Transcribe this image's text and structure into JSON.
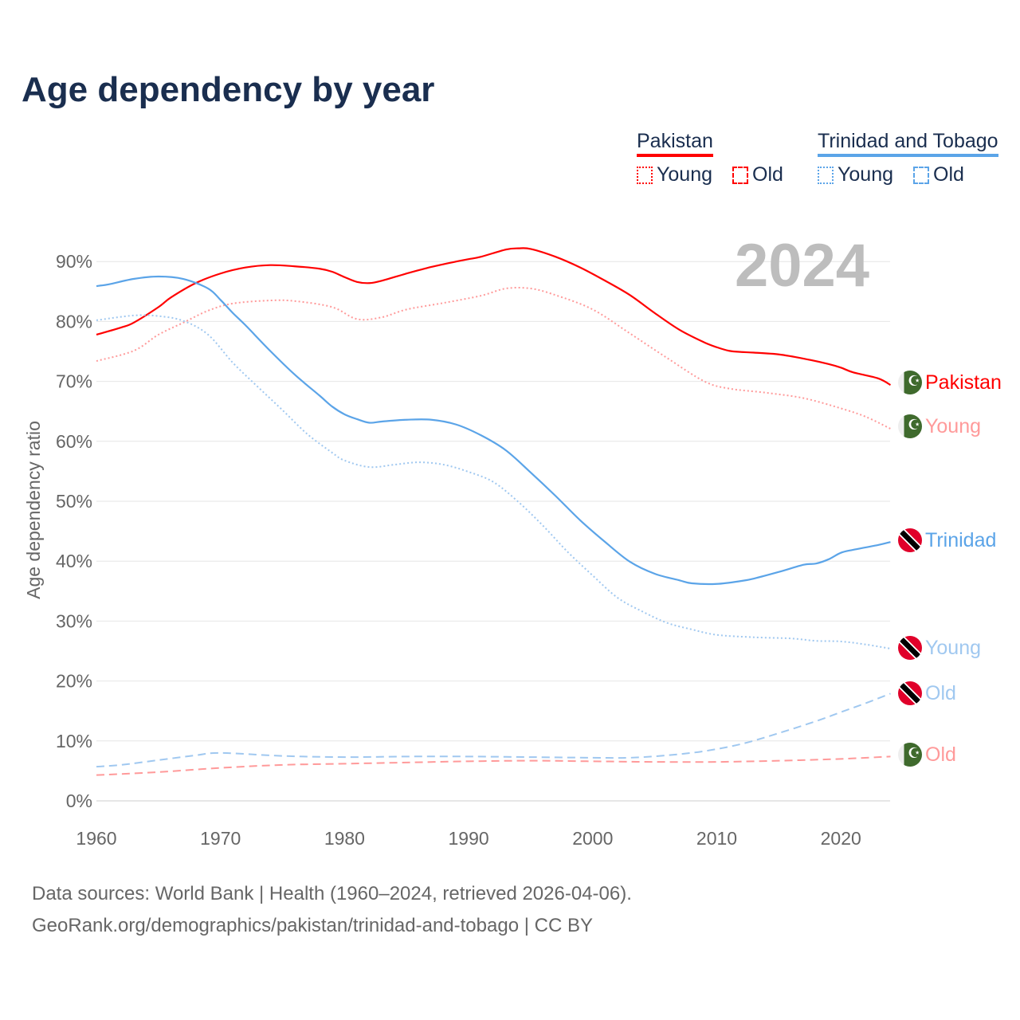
{
  "title": "Age dependency by year",
  "legend": {
    "groups": [
      {
        "name": "Pakistan",
        "color": "#ff0000",
        "items": [
          "Young",
          "Old"
        ]
      },
      {
        "name": "Trinidad and Tobago",
        "color": "#5ba4e8",
        "items": [
          "Young",
          "Old"
        ]
      }
    ]
  },
  "year_display": "2024",
  "end_labels": {
    "pak_total": "Pakistan",
    "pak_young": "Young",
    "pak_old": "Old",
    "tt_total": "Trinidad",
    "tt_young": "Young",
    "tt_old": "Old"
  },
  "footer": {
    "line1": "Data sources: World Bank | Health (1960–2024, retrieved 2026-04-06).",
    "line2": "GeoRank.org/demographics/pakistan/trinidad-and-tobago | CC BY"
  },
  "chart_data": {
    "type": "line",
    "title": "Age dependency by year",
    "xlabel": "",
    "ylabel": "Age dependency ratio",
    "xlim": [
      1960,
      2024
    ],
    "ylim": [
      0,
      90
    ],
    "x_ticks": [
      1960,
      1970,
      1980,
      1990,
      2000,
      2010,
      2020
    ],
    "y_ticks": [
      "0%",
      "10%",
      "20%",
      "30%",
      "40%",
      "50%",
      "60%",
      "70%",
      "80%",
      "90%"
    ],
    "grid": true,
    "series": [
      {
        "id": "pak_total",
        "name": "Pakistan",
        "color": "#ff0000",
        "dash": "solid",
        "points": [
          [
            1960,
            77.8
          ],
          [
            1962,
            79
          ],
          [
            1963,
            79.8
          ],
          [
            1965,
            82.4
          ],
          [
            1966,
            84
          ],
          [
            1968,
            86.4
          ],
          [
            1970,
            88
          ],
          [
            1972,
            89
          ],
          [
            1974,
            89.4
          ],
          [
            1976,
            89.2
          ],
          [
            1978,
            88.8
          ],
          [
            1979,
            88.3
          ],
          [
            1980,
            87.4
          ],
          [
            1981,
            86.6
          ],
          [
            1982,
            86.4
          ],
          [
            1983,
            86.8
          ],
          [
            1985,
            88
          ],
          [
            1987,
            89.1
          ],
          [
            1989,
            90
          ],
          [
            1990,
            90.4
          ],
          [
            1991,
            90.8
          ],
          [
            1993,
            92
          ],
          [
            1994,
            92.2
          ],
          [
            1995,
            92.1
          ],
          [
            1997,
            90.8
          ],
          [
            1999,
            89
          ],
          [
            2001,
            86.8
          ],
          [
            2003,
            84.4
          ],
          [
            2005,
            81.4
          ],
          [
            2007,
            78.6
          ],
          [
            2009,
            76.5
          ],
          [
            2010,
            75.7
          ],
          [
            2011,
            75.1
          ],
          [
            2012,
            74.9
          ],
          [
            2013,
            74.8
          ],
          [
            2015,
            74.5
          ],
          [
            2017,
            73.8
          ],
          [
            2019,
            72.9
          ],
          [
            2020,
            72.3
          ],
          [
            2021,
            71.5
          ],
          [
            2023,
            70.5
          ],
          [
            2024,
            69.4
          ]
        ]
      },
      {
        "id": "pak_young",
        "name": "Pakistan Young",
        "color": "#ff9a9a",
        "dash": "dotted",
        "points": [
          [
            1960,
            73.4
          ],
          [
            1963,
            75.1
          ],
          [
            1965,
            77.8
          ],
          [
            1967,
            79.8
          ],
          [
            1969,
            81.8
          ],
          [
            1971,
            83
          ],
          [
            1974,
            83.5
          ],
          [
            1976,
            83.4
          ],
          [
            1979,
            82.4
          ],
          [
            1981,
            80.4
          ],
          [
            1983,
            80.7
          ],
          [
            1985,
            82
          ],
          [
            1988,
            83.1
          ],
          [
            1991,
            84.3
          ],
          [
            1993,
            85.5
          ],
          [
            1995,
            85.5
          ],
          [
            1997,
            84.4
          ],
          [
            2000,
            82
          ],
          [
            2003,
            78
          ],
          [
            2006,
            73.9
          ],
          [
            2009,
            70
          ],
          [
            2011,
            68.8
          ],
          [
            2014,
            68.1
          ],
          [
            2017,
            67.2
          ],
          [
            2020,
            65.5
          ],
          [
            2022,
            64.1
          ],
          [
            2024,
            62.1
          ]
        ]
      },
      {
        "id": "pak_old",
        "name": "Pakistan Old",
        "color": "#ff9a9a",
        "dash": "dashed",
        "points": [
          [
            1960,
            4.3
          ],
          [
            1965,
            4.8
          ],
          [
            1970,
            5.5
          ],
          [
            1975,
            6.0
          ],
          [
            1980,
            6.2
          ],
          [
            1985,
            6.4
          ],
          [
            1990,
            6.6
          ],
          [
            1995,
            6.7
          ],
          [
            2000,
            6.6
          ],
          [
            2005,
            6.5
          ],
          [
            2010,
            6.5
          ],
          [
            2015,
            6.7
          ],
          [
            2020,
            7.0
          ],
          [
            2024,
            7.4
          ]
        ]
      },
      {
        "id": "tt_total",
        "name": "Trinidad and Tobago",
        "color": "#5ba4e8",
        "dash": "solid",
        "points": [
          [
            1960,
            85.9
          ],
          [
            1961,
            86.2
          ],
          [
            1963,
            87.1
          ],
          [
            1965,
            87.5
          ],
          [
            1967,
            87.1
          ],
          [
            1969,
            85.5
          ],
          [
            1970,
            83.6
          ],
          [
            1971,
            81.4
          ],
          [
            1972,
            79.4
          ],
          [
            1974,
            75.1
          ],
          [
            1976,
            71.1
          ],
          [
            1978,
            67.6
          ],
          [
            1979,
            65.8
          ],
          [
            1980,
            64.5
          ],
          [
            1981,
            63.7
          ],
          [
            1982,
            63.1
          ],
          [
            1983,
            63.3
          ],
          [
            1985,
            63.6
          ],
          [
            1987,
            63.6
          ],
          [
            1989,
            62.8
          ],
          [
            1991,
            61
          ],
          [
            1993,
            58.5
          ],
          [
            1995,
            54.8
          ],
          [
            1997,
            50.9
          ],
          [
            1999,
            46.8
          ],
          [
            2001,
            43.2
          ],
          [
            2003,
            39.9
          ],
          [
            2005,
            37.9
          ],
          [
            2007,
            36.8
          ],
          [
            2008,
            36.3
          ],
          [
            2010,
            36.2
          ],
          [
            2012,
            36.7
          ],
          [
            2013,
            37.1
          ],
          [
            2015,
            38.2
          ],
          [
            2017,
            39.4
          ],
          [
            2018,
            39.6
          ],
          [
            2019,
            40.3
          ],
          [
            2020,
            41.4
          ],
          [
            2021,
            41.9
          ],
          [
            2023,
            42.7
          ],
          [
            2024,
            43.2
          ]
        ]
      },
      {
        "id": "tt_young",
        "name": "Trinidad and Tobago Young",
        "color": "#a0c8f0",
        "dash": "dotted",
        "points": [
          [
            1960,
            80.2
          ],
          [
            1963,
            81
          ],
          [
            1965,
            80.9
          ],
          [
            1967,
            80.1
          ],
          [
            1969,
            77.8
          ],
          [
            1971,
            73.1
          ],
          [
            1973,
            69.1
          ],
          [
            1975,
            65.2
          ],
          [
            1977,
            61.2
          ],
          [
            1979,
            58.1
          ],
          [
            1980,
            56.8
          ],
          [
            1982,
            55.7
          ],
          [
            1984,
            56.1
          ],
          [
            1986,
            56.5
          ],
          [
            1988,
            56.1
          ],
          [
            1990,
            54.9
          ],
          [
            1992,
            53.2
          ],
          [
            1994,
            49.9
          ],
          [
            1996,
            45.9
          ],
          [
            1998,
            41.5
          ],
          [
            2000,
            37.6
          ],
          [
            2002,
            33.9
          ],
          [
            2004,
            31.6
          ],
          [
            2006,
            29.7
          ],
          [
            2008,
            28.6
          ],
          [
            2010,
            27.7
          ],
          [
            2013,
            27.3
          ],
          [
            2016,
            27.1
          ],
          [
            2018,
            26.7
          ],
          [
            2020,
            26.6
          ],
          [
            2022,
            26.1
          ],
          [
            2024,
            25.4
          ]
        ]
      },
      {
        "id": "tt_old",
        "name": "Trinidad and Tobago Old",
        "color": "#a0c8f0",
        "dash": "dashed",
        "points": [
          [
            1960,
            5.7
          ],
          [
            1962,
            6.0
          ],
          [
            1965,
            6.8
          ],
          [
            1968,
            7.6
          ],
          [
            1970,
            8.0
          ],
          [
            1975,
            7.5
          ],
          [
            1980,
            7.3
          ],
          [
            1985,
            7.4
          ],
          [
            1990,
            7.4
          ],
          [
            1995,
            7.3
          ],
          [
            2000,
            7.2
          ],
          [
            2003,
            7.2
          ],
          [
            2006,
            7.6
          ],
          [
            2009,
            8.3
          ],
          [
            2012,
            9.5
          ],
          [
            2015,
            11.3
          ],
          [
            2018,
            13.3
          ],
          [
            2020,
            14.8
          ],
          [
            2022,
            16.3
          ],
          [
            2024,
            17.9
          ]
        ]
      }
    ]
  }
}
